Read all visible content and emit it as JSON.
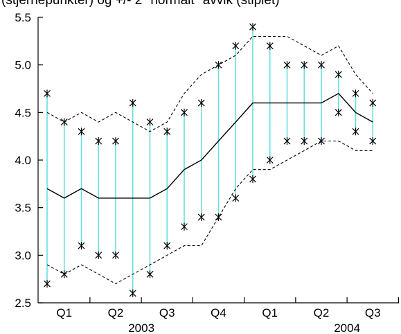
{
  "caption": "(stjernepunkter) og +/- 2 \"normalt\" avvik (stiplet)",
  "chart_data": {
    "type": "line",
    "title": "",
    "xlabel": "",
    "ylabel": "",
    "ylim": [
      2.5,
      5.5
    ],
    "yticks": [
      "2.5",
      "3.0",
      "3.5",
      "4.0",
      "4.5",
      "5.0",
      "5.5"
    ],
    "quarter_labels": [
      "Q1",
      "Q2",
      "Q3",
      "Q4",
      "Q1",
      "Q2",
      "Q3"
    ],
    "year_labels": [
      "2003",
      "2004"
    ],
    "colors": {
      "range_line": "#66e0e0",
      "series": "#000000",
      "band": "#000000"
    },
    "x": [
      1,
      2,
      3,
      4,
      5,
      6,
      7,
      8,
      9,
      10,
      11,
      12,
      13,
      14,
      15,
      16,
      17,
      18,
      19,
      20
    ],
    "series": [
      {
        "values": [
          3.7,
          3.6,
          3.7,
          3.6,
          3.6,
          3.6,
          3.6,
          3.7,
          3.9,
          4.0,
          4.2,
          4.4,
          4.6,
          4.6,
          4.6,
          4.6,
          4.6,
          4.7,
          4.5,
          4.4
        ]
      },
      {
        "values": [
          4.5,
          4.4,
          4.5,
          4.4,
          4.5,
          4.4,
          4.3,
          4.4,
          4.7,
          4.9,
          5.0,
          5.1,
          5.3,
          5.3,
          5.3,
          5.2,
          5.1,
          5.2,
          4.9,
          4.7
        ]
      },
      {
        "values": [
          2.9,
          2.8,
          2.9,
          2.8,
          2.7,
          2.8,
          2.9,
          3.0,
          3.1,
          3.1,
          3.4,
          3.7,
          3.9,
          3.9,
          4.0,
          4.1,
          4.2,
          4.2,
          4.1,
          4.1
        ]
      },
      {
        "values": [
          4.7,
          4.4,
          4.3,
          4.2,
          4.2,
          4.6,
          4.4,
          4.3,
          4.5,
          4.6,
          5.0,
          5.2,
          5.4,
          5.2,
          5.0,
          5.0,
          5.0,
          4.9,
          4.7,
          4.6
        ]
      },
      {
        "values": [
          2.7,
          2.8,
          3.1,
          3.0,
          3.0,
          2.6,
          2.8,
          3.1,
          3.3,
          3.4,
          3.4,
          3.6,
          3.8,
          4.0,
          4.2,
          4.2,
          4.2,
          4.5,
          4.3,
          4.2
        ]
      }
    ]
  }
}
